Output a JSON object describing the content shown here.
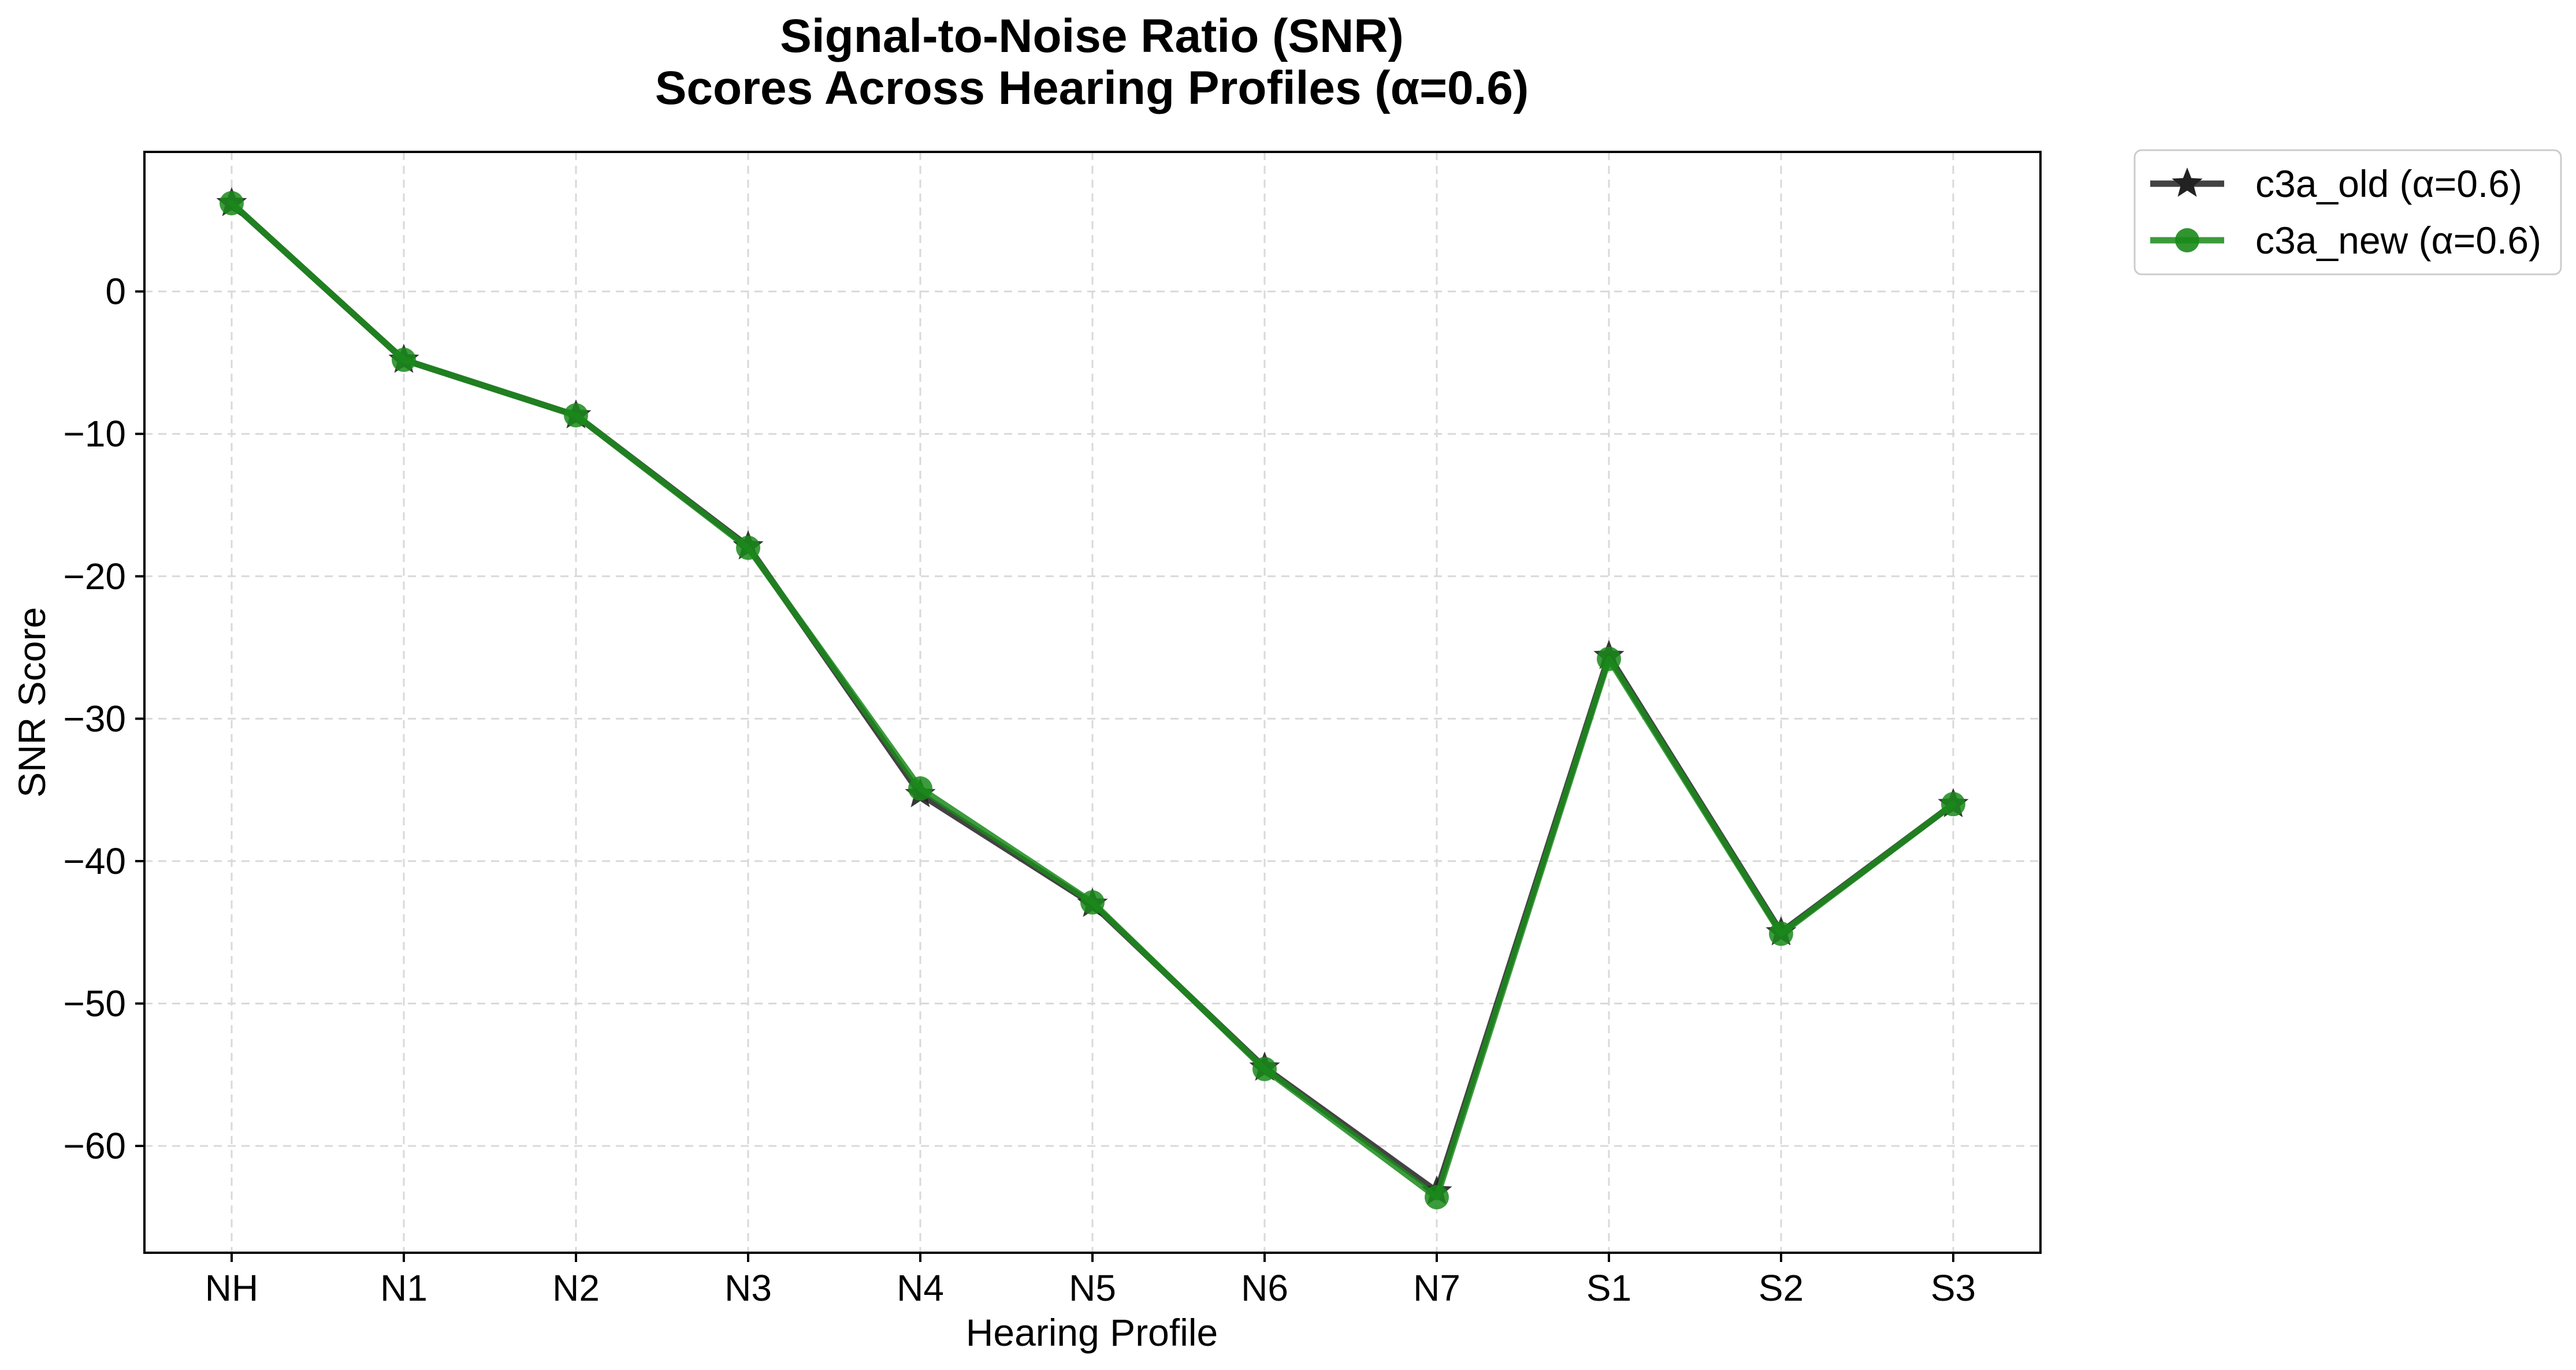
{
  "chart_data": {
    "type": "line",
    "title": [
      "Signal-to-Noise Ratio (SNR)",
      "Scores Across Hearing Profiles (α=0.6)"
    ],
    "xlabel": "Hearing Profile",
    "ylabel": "SNR Score",
    "categories": [
      "NH",
      "N1",
      "N2",
      "N3",
      "N4",
      "N5",
      "N6",
      "N7",
      "S1",
      "S2",
      "S3"
    ],
    "ylim": [
      -67.5,
      9.8
    ],
    "yticks": [
      0,
      -10,
      -20,
      -30,
      -40,
      -50,
      -60
    ],
    "ytick_labels": [
      "0",
      "−10",
      "−20",
      "−30",
      "−40",
      "−50",
      "−60"
    ],
    "grid": true,
    "legend_position": "outside-top-right",
    "series": [
      {
        "name": "c3a_old (α=0.6)",
        "marker": "star",
        "color": "#222222",
        "values": [
          6.2,
          -4.8,
          -8.7,
          -17.9,
          -35.3,
          -43.0,
          -54.5,
          -63.2,
          -25.6,
          -45.0,
          -36.0
        ]
      },
      {
        "name": "c3a_new (α=0.6)",
        "marker": "circle",
        "color": "#1a8a1a",
        "values": [
          6.2,
          -4.8,
          -8.7,
          -18.0,
          -34.9,
          -42.9,
          -54.6,
          -63.6,
          -25.8,
          -45.1,
          -36.0
        ]
      }
    ]
  }
}
